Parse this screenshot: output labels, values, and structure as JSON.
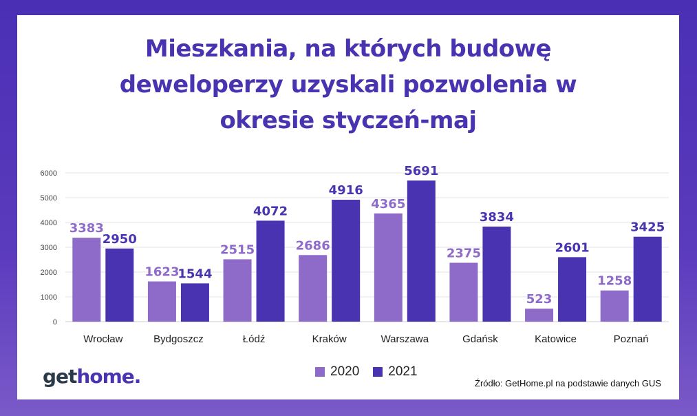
{
  "title_lines": [
    "Mieszkania, na których budowę",
    "deweloperzy uzyskali pozwolenia w",
    "okresie styczeń-maj"
  ],
  "colors": {
    "accent": "#4a33b0",
    "series_2020": "#8f6bc9",
    "series_2021": "#4a33b0"
  },
  "chart_data": {
    "type": "bar",
    "title": "Mieszkania, na których budowę deweloperzy uzyskali pozwolenia w okresie styczeń-maj",
    "categories": [
      "Wrocław",
      "Bydgoszcz",
      "Łódź",
      "Kraków",
      "Warszawa",
      "Gdańsk",
      "Katowice",
      "Poznań"
    ],
    "series": [
      {
        "name": "2020",
        "values": [
          3383,
          1623,
          2515,
          2686,
          4365,
          2375,
          523,
          1258
        ]
      },
      {
        "name": "2021",
        "values": [
          2950,
          1544,
          4072,
          4916,
          5691,
          3834,
          2601,
          3425
        ]
      }
    ],
    "yticks": [
      0,
      1000,
      2000,
      3000,
      4000,
      5000,
      6000
    ],
    "ylim": [
      0,
      6000
    ],
    "grid": true,
    "legend_position": "bottom"
  },
  "legend": {
    "item_2020": "2020",
    "item_2021": "2021"
  },
  "logo": {
    "part1": "get",
    "part2": "home."
  },
  "source": "Źródło: GetHome.pl na podstawie danych GUS"
}
